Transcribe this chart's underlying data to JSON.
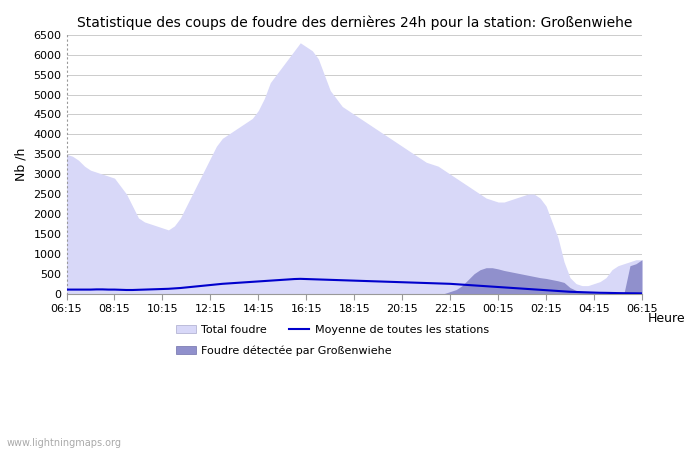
{
  "title": "Statistique des coups de foudre des dernières 24h pour la station: Großenwiehe",
  "ylabel": "Nb /h",
  "xlabel": "Heure",
  "watermark": "www.lightningmaps.org",
  "ylim": [
    0,
    6500
  ],
  "yticks": [
    0,
    500,
    1000,
    1500,
    2000,
    2500,
    3000,
    3500,
    4000,
    4500,
    5000,
    5500,
    6000,
    6500
  ],
  "xtick_labels": [
    "06:15",
    "08:15",
    "10:15",
    "12:15",
    "14:15",
    "16:15",
    "18:15",
    "20:15",
    "22:15",
    "00:15",
    "02:15",
    "04:15",
    "06:15"
  ],
  "legend_total": "Total foudre",
  "legend_moyenne": "Moyenne de toutes les stations",
  "legend_local": "Foudre détectée par Großenwiehe",
  "color_total_fill": "#d8d8f8",
  "color_total_edge": "#d8d8f8",
  "color_local_fill": "#9090cc",
  "color_local_edge": "#9090cc",
  "color_moyenne": "#0000cc",
  "background_color": "#ffffff",
  "plot_bg_color": "#ffffff",
  "grid_color": "#cccccc",
  "xtick_count": 97,
  "total_foudre": [
    3500,
    3450,
    3350,
    3200,
    3100,
    3050,
    3000,
    2950,
    2900,
    2700,
    2500,
    2200,
    1900,
    1800,
    1750,
    1700,
    1650,
    1600,
    1700,
    1900,
    2200,
    2500,
    2800,
    3100,
    3400,
    3700,
    3900,
    4000,
    4100,
    4200,
    4300,
    4400,
    4600,
    4900,
    5300,
    5500,
    5700,
    5900,
    6100,
    6300,
    6200,
    6100,
    5900,
    5500,
    5100,
    4900,
    4700,
    4600,
    4500,
    4400,
    4300,
    4200,
    4100,
    4000,
    3900,
    3800,
    3700,
    3600,
    3500,
    3400,
    3300,
    3250,
    3200,
    3100,
    3000,
    2900,
    2800,
    2700,
    2600,
    2500,
    2400,
    2350,
    2300,
    2300,
    2350,
    2400,
    2450,
    2500,
    2500,
    2400,
    2200,
    1800,
    1400,
    800,
    400,
    250,
    200,
    200,
    250,
    300,
    400,
    600,
    700,
    750,
    800,
    850,
    850
  ],
  "local_foudre": [
    0,
    0,
    0,
    0,
    0,
    0,
    0,
    0,
    0,
    0,
    0,
    0,
    0,
    0,
    0,
    0,
    0,
    0,
    0,
    0,
    0,
    0,
    0,
    0,
    0,
    0,
    0,
    0,
    0,
    0,
    0,
    0,
    0,
    0,
    0,
    0,
    0,
    0,
    0,
    0,
    0,
    0,
    0,
    0,
    0,
    0,
    0,
    0,
    0,
    0,
    0,
    0,
    0,
    0,
    0,
    0,
    0,
    0,
    0,
    0,
    0,
    0,
    0,
    0,
    50,
    100,
    200,
    350,
    500,
    600,
    650,
    650,
    620,
    580,
    550,
    520,
    490,
    460,
    430,
    400,
    380,
    350,
    320,
    280,
    150,
    80,
    50,
    30,
    20,
    10,
    5,
    5,
    5,
    5,
    700,
    750,
    850
  ],
  "moyenne": [
    100,
    100,
    100,
    100,
    100,
    105,
    105,
    100,
    100,
    95,
    90,
    90,
    95,
    100,
    105,
    110,
    115,
    120,
    130,
    140,
    155,
    170,
    185,
    200,
    215,
    230,
    245,
    255,
    265,
    275,
    285,
    295,
    305,
    315,
    325,
    335,
    345,
    355,
    365,
    370,
    365,
    360,
    355,
    350,
    345,
    340,
    335,
    330,
    325,
    320,
    315,
    310,
    305,
    300,
    295,
    290,
    285,
    280,
    275,
    270,
    265,
    260,
    255,
    250,
    245,
    235,
    225,
    215,
    205,
    195,
    185,
    175,
    165,
    155,
    145,
    135,
    125,
    115,
    105,
    95,
    85,
    75,
    65,
    55,
    45,
    40,
    35,
    30,
    25,
    20,
    18,
    15,
    12,
    10,
    8,
    7,
    5
  ],
  "title_fontsize": 10,
  "axis_label_fontsize": 9,
  "tick_fontsize": 8,
  "legend_fontsize": 8
}
